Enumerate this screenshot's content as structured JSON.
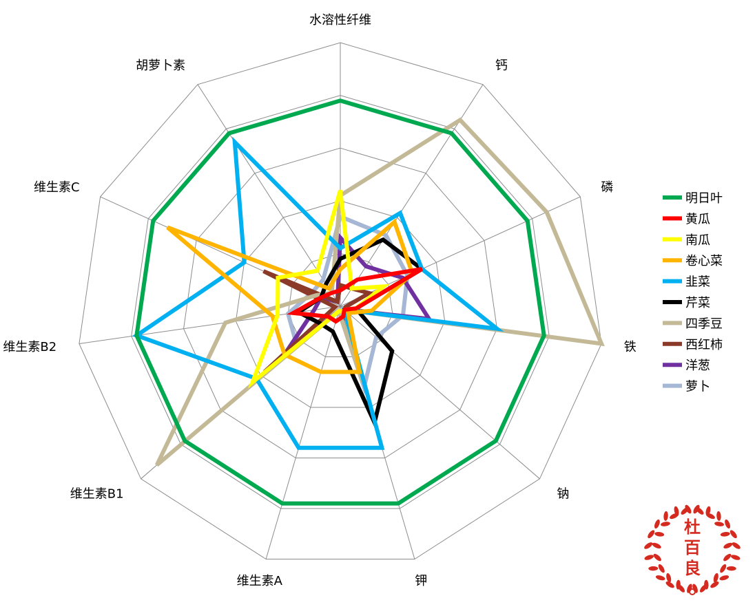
{
  "chart_data": {
    "type": "radar",
    "title": "",
    "axes": [
      "水溶性纤维",
      "钙",
      "磷",
      "铁",
      "钠",
      "钾",
      "维生素A",
      "维生素B1",
      "维生素B2",
      "维生素C",
      "胡萝卜素"
    ],
    "rlim": [
      0,
      5
    ],
    "grid": true,
    "legend_position": "right",
    "series": [
      {
        "name": "明日叶",
        "color": "#00a94f",
        "values": [
          3.9,
          3.9,
          3.9,
          3.9,
          3.9,
          3.9,
          3.9,
          3.9,
          3.9,
          3.9,
          3.9
        ]
      },
      {
        "name": "黄瓜",
        "color": "#ff0000",
        "values": [
          0.3,
          0.6,
          1.7,
          0.3,
          0.1,
          0.2,
          0.3,
          0.3,
          0.9,
          0.4,
          0.3
        ]
      },
      {
        "name": "南瓜",
        "color": "#ffff00",
        "values": [
          2.2,
          0.4,
          0.9,
          0.3,
          0.1,
          0.1,
          0.1,
          2.2,
          1.2,
          1.3,
          0.8
        ]
      },
      {
        "name": "卷心菜",
        "color": "#ffb400",
        "values": [
          0.7,
          1.9,
          1.5,
          0.6,
          0.2,
          1.3,
          1.3,
          1.4,
          1.3,
          3.6,
          0.4
        ]
      },
      {
        "name": "韭菜",
        "color": "#00b0f0",
        "values": [
          1.1,
          2.1,
          1.7,
          3.0,
          0.1,
          2.8,
          2.8,
          2.1,
          3.9,
          2.0,
          3.7
        ]
      },
      {
        "name": "芹菜",
        "color": "#000000",
        "values": [
          0.9,
          1.5,
          1.7,
          0.3,
          1.3,
          2.3,
          0.5,
          0.5,
          0.8,
          0.4,
          0.5
        ]
      },
      {
        "name": "四季豆",
        "color": "#c3b996",
        "values": [
          2.1,
          4.2,
          4.3,
          5.0,
          0.1,
          1.5,
          0.1,
          4.6,
          2.2,
          0.5,
          0.3
        ]
      },
      {
        "name": "西红柿",
        "color": "#8b3a2a",
        "values": [
          0.4,
          0.4,
          0.6,
          0.1,
          0.1,
          0.1,
          0.1,
          1.9,
          0.1,
          1.6,
          0.1
        ]
      },
      {
        "name": "洋葱",
        "color": "#7030a0",
        "values": [
          1.3,
          0.9,
          1.3,
          1.7,
          0.1,
          0.2,
          0.1,
          1.4,
          0.5,
          0.4,
          0.1
        ]
      },
      {
        "name": "萝卜",
        "color": "#a6b6d5",
        "values": [
          1.7,
          1.6,
          1.4,
          1.2,
          0.9,
          1.6,
          0.1,
          1.1,
          1.0,
          0.6,
          0.6
        ]
      }
    ]
  },
  "seal": {
    "chars": [
      "杜",
      "百",
      "良"
    ],
    "color": "#d42a1f"
  }
}
